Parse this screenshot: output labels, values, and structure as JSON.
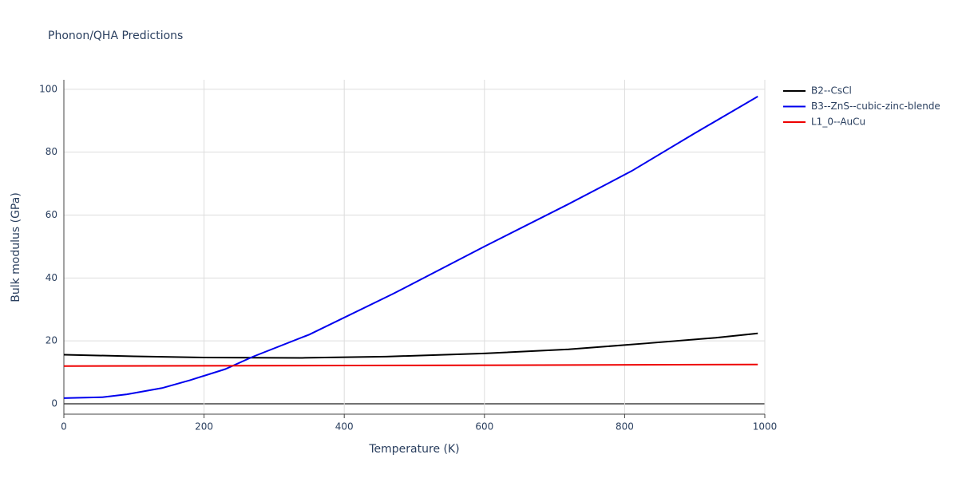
{
  "chart_data": {
    "type": "line",
    "title": "Phonon/QHA Predictions",
    "xlabel": "Temperature (K)",
    "ylabel": "Bulk modulus (GPa)",
    "xlim": [
      0,
      1000
    ],
    "ylim": [
      -3.3,
      103
    ],
    "xticks": [
      0,
      200,
      400,
      600,
      800,
      1000
    ],
    "yticks": [
      0,
      20,
      40,
      60,
      80,
      100
    ],
    "grid": true,
    "legend": "right",
    "series": [
      {
        "name": "B2--CsCl",
        "color": "#000000",
        "x": [
          0,
          100,
          200,
          340,
          460,
          600,
          720,
          830,
          930,
          990
        ],
        "values": [
          15.6,
          15.1,
          14.7,
          14.6,
          15.0,
          16.0,
          17.3,
          19.2,
          21.0,
          22.4
        ]
      },
      {
        "name": "B3--ZnS--cubic-zinc-blende",
        "color": "#0000ee",
        "x": [
          0,
          55,
          90,
          140,
          180,
          230,
          270,
          350,
          470,
          600,
          720,
          810,
          900,
          990
        ],
        "values": [
          1.8,
          2.1,
          3.0,
          5.0,
          7.5,
          11.0,
          15.0,
          22.0,
          35.0,
          50.0,
          63.5,
          74.0,
          86.0,
          97.7
        ]
      },
      {
        "name": "L1_0--AuCu",
        "color": "#ee0000",
        "x": [
          0,
          500,
          990
        ],
        "values": [
          12.0,
          12.2,
          12.5
        ]
      }
    ]
  }
}
